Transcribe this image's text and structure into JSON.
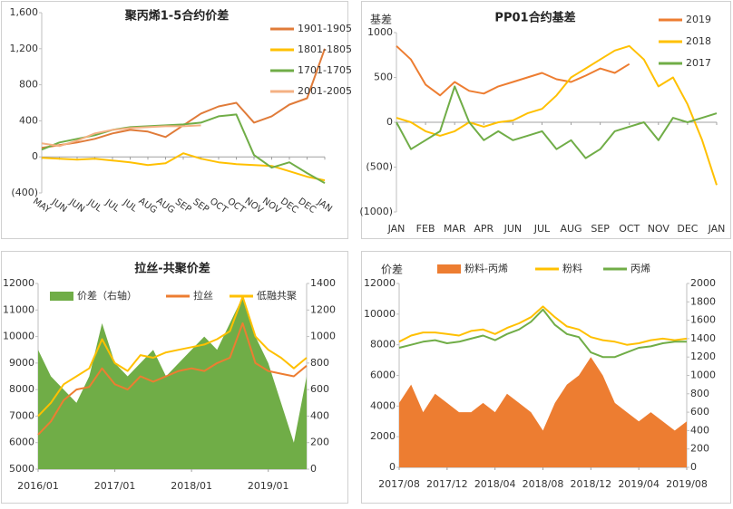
{
  "chart_data": [
    {
      "type": "line",
      "title": "聚丙烯1-5合约价差",
      "legend": "right",
      "x_labels_rotated": true,
      "negative_label_color": "#c00000",
      "grid": false,
      "categories": [
        "MAY",
        "JUN",
        "JUN",
        "JUL",
        "JUL",
        "JUL",
        "AUG",
        "AUG",
        "SEP",
        "SEP",
        "OCT",
        "OCT",
        "NOV",
        "NOV",
        "DEC",
        "DEC",
        "JAN"
      ],
      "ylim": [
        -400,
        1600
      ],
      "yticks": [
        {
          "value": 1600,
          "label": "1,600"
        },
        {
          "value": 1200,
          "label": "1,200"
        },
        800,
        400,
        0,
        {
          "value": -400,
          "label": "(400)"
        }
      ],
      "series": [
        {
          "name": "1901-1905",
          "color": "#e07b39",
          "values": [
            100,
            130,
            160,
            200,
            260,
            300,
            280,
            220,
            350,
            480,
            560,
            600,
            380,
            450,
            580,
            650,
            1200
          ]
        },
        {
          "name": "1801-1805",
          "color": "#ffc000",
          "values": [
            -10,
            -20,
            -30,
            -20,
            -40,
            -60,
            -90,
            -70,
            40,
            -20,
            -60,
            -80,
            -90,
            -100,
            -160,
            -220,
            -260
          ]
        },
        {
          "name": "1701-1705",
          "color": "#70ad47",
          "values": [
            80,
            160,
            200,
            240,
            300,
            330,
            340,
            350,
            360,
            380,
            450,
            470,
            20,
            -120,
            -60,
            -180,
            -290
          ]
        },
        {
          "name": "2001-2005",
          "color": "#f4b183",
          "values": [
            150,
            120,
            180,
            260,
            300,
            320,
            330,
            340,
            340,
            350,
            null,
            null,
            null,
            null,
            null,
            null,
            null
          ]
        }
      ]
    },
    {
      "type": "line",
      "title": "PP01合约基差",
      "y_label": "基差",
      "legend": "top-right",
      "grid": false,
      "categories": [
        "JAN",
        null,
        "FEB",
        null,
        "MAR",
        null,
        "APR",
        null,
        "JUN",
        null,
        "JUL",
        null,
        "AUG",
        null,
        "SEP",
        null,
        "OCT",
        null,
        "NOV",
        null,
        "DEC",
        null,
        "JAN"
      ],
      "ylim": [
        -1000,
        1000
      ],
      "yticks": [
        1000,
        500,
        0,
        {
          "value": -500,
          "label": "(500)"
        },
        {
          "value": -1000,
          "label": "(1000)"
        }
      ],
      "series": [
        {
          "name": "2019",
          "color": "#ed7d31",
          "values": [
            850,
            700,
            420,
            300,
            450,
            350,
            320,
            400,
            450,
            500,
            550,
            480,
            450,
            520,
            600,
            550,
            650,
            null,
            null,
            null,
            null,
            null,
            null
          ]
        },
        {
          "name": "2018",
          "color": "#ffc000",
          "values": [
            50,
            0,
            -100,
            -150,
            -100,
            0,
            -50,
            0,
            20,
            100,
            150,
            300,
            500,
            600,
            700,
            800,
            850,
            700,
            400,
            500,
            200,
            -200,
            -700
          ]
        },
        {
          "name": "2017",
          "color": "#70ad47",
          "values": [
            0,
            -300,
            -200,
            -100,
            400,
            0,
            -200,
            -100,
            -200,
            -150,
            -100,
            -300,
            -200,
            -400,
            -300,
            -100,
            -50,
            0,
            -200,
            50,
            0,
            50,
            100
          ]
        }
      ]
    },
    {
      "type": "line",
      "title": "拉丝-共聚价差",
      "legend": "top",
      "grid": false,
      "categories": [
        "2016/01",
        null,
        null,
        null,
        null,
        null,
        "2017/01",
        null,
        null,
        null,
        null,
        null,
        "2018/01",
        null,
        null,
        null,
        null,
        null,
        "2019/01",
        null,
        null,
        null
      ],
      "ylim": [
        5000,
        12000
      ],
      "yticks": [
        5000,
        6000,
        7000,
        8000,
        9000,
        10000,
        11000,
        12000
      ],
      "y2lim": [
        0,
        1400
      ],
      "y2ticks": [
        0,
        200,
        400,
        600,
        800,
        1000,
        1200,
        1400
      ],
      "series": [
        {
          "name": "价差（右轴）",
          "color": "#70ad47",
          "type": "area",
          "axis": "y2",
          "values": [
            900,
            700,
            600,
            500,
            700,
            1100,
            800,
            700,
            800,
            900,
            700,
            800,
            900,
            1000,
            900,
            1100,
            1300,
            1000,
            800,
            500,
            200,
            700
          ]
        },
        {
          "name": "拉丝",
          "color": "#ed7d31",
          "values": [
            6300,
            6800,
            7600,
            8000,
            8100,
            8800,
            8200,
            8000,
            8500,
            8300,
            8500,
            8700,
            8800,
            8700,
            9000,
            9200,
            10500,
            9000,
            8700,
            8600,
            8500,
            8900
          ]
        },
        {
          "name": "低融共聚",
          "color": "#ffc000",
          "values": [
            7000,
            7500,
            8200,
            8500,
            8800,
            9900,
            9000,
            8700,
            9300,
            9200,
            9400,
            9500,
            9600,
            9700,
            9900,
            10200,
            11500,
            10000,
            9500,
            9200,
            8800,
            9200
          ]
        }
      ]
    },
    {
      "type": "line",
      "y_label": "价差",
      "legend": "top",
      "grid": false,
      "categories": [
        "2017/08",
        null,
        null,
        null,
        "2017/12",
        null,
        null,
        null,
        "2018/04",
        null,
        null,
        null,
        "2018/08",
        null,
        null,
        null,
        "2018/12",
        null,
        null,
        null,
        "2019/04",
        null,
        null,
        null,
        "2019/08"
      ],
      "ylim": [
        0,
        12000
      ],
      "yticks": [
        0,
        2000,
        4000,
        6000,
        8000,
        10000,
        12000
      ],
      "y2lim": [
        0,
        2000
      ],
      "y2ticks": [
        0,
        200,
        400,
        600,
        800,
        1000,
        1200,
        1400,
        1600,
        1800,
        2000
      ],
      "series": [
        {
          "name": "粉料-丙烯",
          "color": "#ed7d31",
          "type": "area",
          "axis": "y2",
          "values": [
            700,
            900,
            600,
            800,
            700,
            600,
            600,
            700,
            600,
            800,
            700,
            600,
            400,
            700,
            900,
            1000,
            1200,
            1000,
            700,
            600,
            500,
            600,
            500,
            400,
            500
          ]
        },
        {
          "name": "粉料",
          "color": "#ffc000",
          "values": [
            8200,
            8600,
            8800,
            8800,
            8700,
            8600,
            8900,
            9000,
            8700,
            9100,
            9400,
            9800,
            10500,
            9800,
            9200,
            9000,
            8500,
            8300,
            8200,
            8000,
            8100,
            8300,
            8400,
            8300,
            8400
          ]
        },
        {
          "name": "丙烯",
          "color": "#70ad47",
          "values": [
            7800,
            8000,
            8200,
            8300,
            8100,
            8200,
            8400,
            8600,
            8300,
            8700,
            9000,
            9500,
            10300,
            9300,
            8700,
            8500,
            7500,
            7200,
            7200,
            7500,
            7800,
            7900,
            8100,
            8200,
            8200
          ]
        }
      ]
    }
  ]
}
